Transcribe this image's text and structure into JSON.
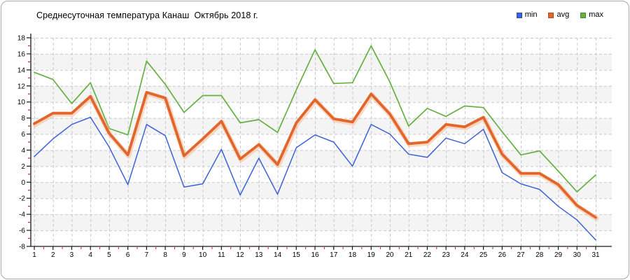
{
  "chart_data": {
    "type": "line",
    "title": "Среднесуточная температура Канаш  Октябрь 2018 г.",
    "x": [
      1,
      2,
      3,
      4,
      5,
      6,
      7,
      8,
      9,
      10,
      11,
      12,
      13,
      14,
      15,
      16,
      17,
      18,
      19,
      20,
      21,
      22,
      23,
      24,
      25,
      26,
      27,
      28,
      29,
      30,
      31
    ],
    "xlabel": "",
    "ylabel": "",
    "ylim": [
      -8,
      18
    ],
    "y_tick_step": 2,
    "grid": true,
    "legend_position": "top-right",
    "background_band_color": "#f4f4f4",
    "gridline_color": "#c9c9c9",
    "axis_color": "#1a1a1a",
    "minor_tick_color": "#cc2222",
    "series": [
      {
        "name": "min",
        "color": "#3d62d8",
        "values": [
          3.2,
          5.4,
          7.2,
          8.1,
          4.4,
          -0.3,
          7.2,
          5.8,
          -0.6,
          -0.2,
          4.1,
          -1.6,
          3.0,
          -1.5,
          4.3,
          5.9,
          5.0,
          2.0,
          7.2,
          6.0,
          3.5,
          3.1,
          5.5,
          4.8,
          6.6,
          1.2,
          -0.2,
          -0.9,
          -3.0,
          -4.7,
          -7.2
        ]
      },
      {
        "name": "avg",
        "color": "#e2662c",
        "values": [
          7.3,
          8.6,
          8.6,
          10.7,
          6.1,
          3.4,
          11.2,
          10.5,
          3.3,
          5.4,
          7.6,
          2.9,
          4.7,
          2.2,
          7.4,
          10.3,
          7.9,
          7.5,
          11.0,
          8.5,
          4.8,
          5.0,
          7.2,
          6.9,
          8.1,
          3.5,
          1.1,
          1.1,
          -0.3,
          -2.9,
          -4.4
        ]
      },
      {
        "name": "max",
        "color": "#65b040",
        "values": [
          13.7,
          12.8,
          9.8,
          12.4,
          6.7,
          5.9,
          15.1,
          12.2,
          8.7,
          10.8,
          10.8,
          7.4,
          7.8,
          6.2,
          11.5,
          16.5,
          12.3,
          12.4,
          17.0,
          12.5,
          7.0,
          9.2,
          8.2,
          9.5,
          9.3,
          6.3,
          3.4,
          3.9,
          1.4,
          -1.2,
          0.9
        ]
      }
    ]
  }
}
